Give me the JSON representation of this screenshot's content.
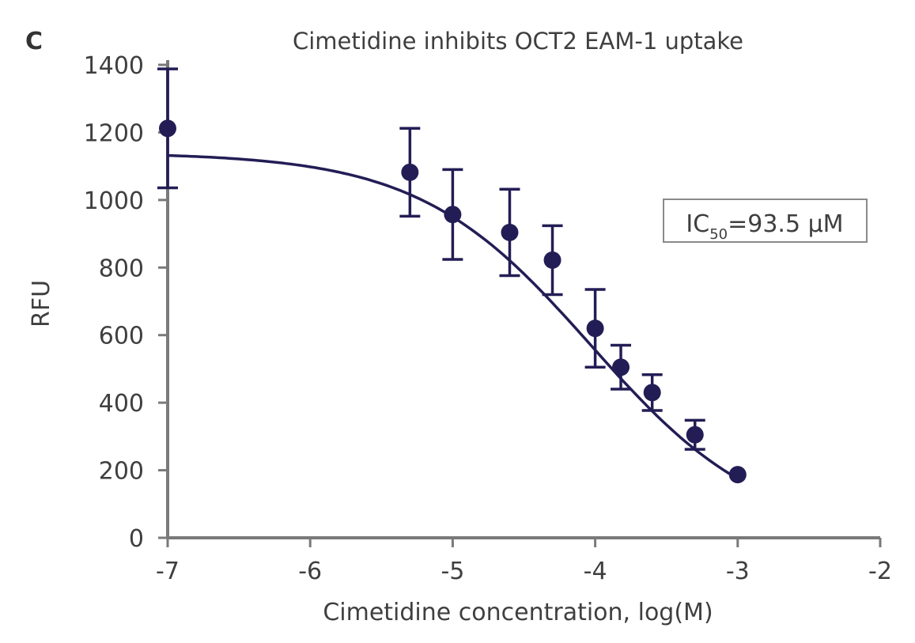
{
  "panel_label": "C",
  "chart_data": {
    "type": "scatter",
    "title": "Cimetidine inhibits OCT2 EAM-1 uptake",
    "xlabel": "Cimetidine concentration, log(M)",
    "ylabel": "RFU",
    "xlim": [
      -7,
      -2
    ],
    "ylim": [
      0,
      1400
    ],
    "x_ticks": [
      -7,
      -6,
      -5,
      -4,
      -3,
      -2
    ],
    "y_ticks": [
      0,
      200,
      400,
      600,
      800,
      1000,
      1200,
      1400
    ],
    "series": [
      {
        "color": "#231d55",
        "points": [
          {
            "x": -7.0,
            "y": 1212,
            "err": 176
          },
          {
            "x": -5.3,
            "y": 1082,
            "err": 130
          },
          {
            "x": -5.0,
            "y": 957,
            "err": 133
          },
          {
            "x": -4.6,
            "y": 904,
            "err": 128
          },
          {
            "x": -4.3,
            "y": 822,
            "err": 102
          },
          {
            "x": -4.0,
            "y": 620,
            "err": 115
          },
          {
            "x": -3.82,
            "y": 505,
            "err": 65
          },
          {
            "x": -3.6,
            "y": 430,
            "err": 53
          },
          {
            "x": -3.3,
            "y": 305,
            "err": 43
          },
          {
            "x": -3.0,
            "y": 187,
            "err": 0
          }
        ],
        "fit": {
          "model": "four-parameter logistic",
          "top": 1140,
          "bottom": 0,
          "log_ic50": -4.03,
          "hill": 0.72
        }
      }
    ],
    "annotation": {
      "prefix": "IC",
      "subscript": "50",
      "suffix": "=93.5 μM"
    },
    "grid": false,
    "legend": "none"
  }
}
